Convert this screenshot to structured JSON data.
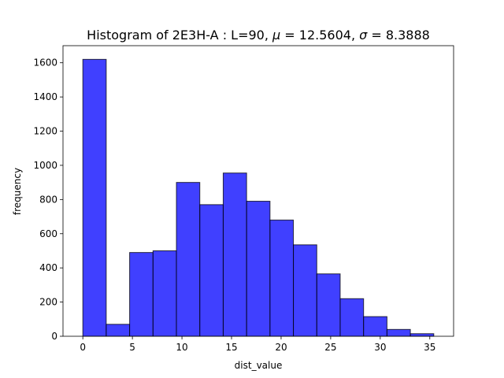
{
  "chart_data": {
    "type": "bar",
    "title": "Histogram of 2E3H-A : L=90, $\\mu=12.5604$, $\\sigma=8.3888$",
    "title_parts": {
      "prefix": "Histogram of 2E3H-A : L=90, ",
      "mu_symbol": "μ",
      "mu_value": " = 12.5604",
      "separator": ", ",
      "sigma_symbol": "σ",
      "sigma_value": " = 8.3888"
    },
    "xlabel": "dist_value",
    "ylabel": "frequency",
    "bin_edges": [
      0.0,
      2.36,
      4.72,
      7.08,
      9.44,
      11.8,
      14.16,
      16.52,
      18.88,
      21.24,
      23.6,
      25.96,
      28.32,
      30.68,
      33.04,
      35.4
    ],
    "values": [
      1620,
      70,
      490,
      500,
      900,
      770,
      955,
      790,
      680,
      535,
      365,
      220,
      115,
      40,
      15
    ],
    "xlim": [
      -2.0,
      37.4
    ],
    "ylim": [
      0,
      1700
    ],
    "xticks": [
      0,
      5,
      10,
      15,
      20,
      25,
      30,
      35
    ],
    "yticks": [
      0,
      200,
      400,
      600,
      800,
      1000,
      1200,
      1400,
      1600
    ],
    "bar_color": "#0000ff",
    "bar_opacity": 0.75,
    "edge_color": "#000000",
    "grid": false,
    "legend": "none"
  }
}
